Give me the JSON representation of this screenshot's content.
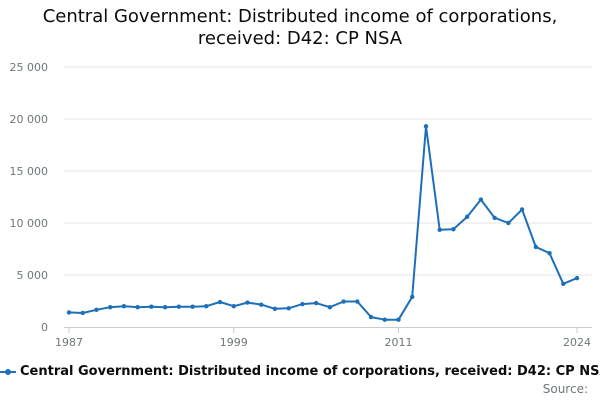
{
  "chart_data": {
    "type": "line",
    "title_lines": [
      "Central Government: Distributed income of corporations,",
      "received: D42: CP NSA"
    ],
    "x": [
      1987,
      1988,
      1989,
      1990,
      1991,
      1992,
      1993,
      1994,
      1995,
      1996,
      1997,
      1998,
      1999,
      2000,
      2001,
      2002,
      2003,
      2004,
      2005,
      2006,
      2007,
      2008,
      2009,
      2010,
      2011,
      2012,
      2013,
      2014,
      2015,
      2016,
      2017,
      2018,
      2019,
      2020,
      2021,
      2022,
      2023,
      2024
    ],
    "series": [
      {
        "name": "Central Government: Distributed income of corporations, received: D42: CP NSA",
        "color": "#1d70b8",
        "values": [
          1400,
          1350,
          1650,
          1900,
          2000,
          1900,
          1950,
          1900,
          1950,
          1950,
          2000,
          2400,
          2000,
          2350,
          2150,
          1750,
          1800,
          2200,
          2300,
          1900,
          2450,
          2450,
          950,
          700,
          700,
          2900,
          19300,
          9350,
          9400,
          10600,
          12250,
          10500,
          10000,
          11300,
          7700,
          7100,
          4150,
          4700
        ]
      }
    ],
    "xticks": [
      1987,
      1999,
      2011,
      2024
    ],
    "yticks": [
      0,
      5000,
      10000,
      15000,
      20000,
      25000
    ],
    "ytick_labels": [
      "0",
      "5 000",
      "10 000",
      "15 000",
      "20 000",
      "25 000"
    ],
    "xlim": [
      1987,
      2024
    ],
    "ylim": [
      0,
      25000
    ],
    "grid": "horizontal",
    "legend_position": "bottom-right",
    "source_label": "Source:"
  }
}
